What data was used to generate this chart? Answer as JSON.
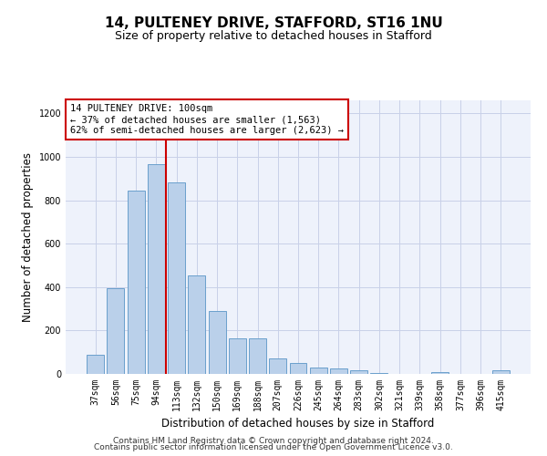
{
  "title": "14, PULTENEY DRIVE, STAFFORD, ST16 1NU",
  "subtitle": "Size of property relative to detached houses in Stafford",
  "xlabel": "Distribution of detached houses by size in Stafford",
  "ylabel": "Number of detached properties",
  "footnote1": "Contains HM Land Registry data © Crown copyright and database right 2024.",
  "footnote2": "Contains public sector information licensed under the Open Government Licence v3.0.",
  "categories": [
    "37sqm",
    "56sqm",
    "75sqm",
    "94sqm",
    "113sqm",
    "132sqm",
    "150sqm",
    "169sqm",
    "188sqm",
    "207sqm",
    "226sqm",
    "245sqm",
    "264sqm",
    "283sqm",
    "302sqm",
    "321sqm",
    "339sqm",
    "358sqm",
    "377sqm",
    "396sqm",
    "415sqm"
  ],
  "values": [
    90,
    395,
    845,
    965,
    880,
    455,
    290,
    165,
    165,
    70,
    50,
    30,
    25,
    18,
    5,
    0,
    0,
    10,
    0,
    0,
    18
  ],
  "bar_color": "#bad0ea",
  "bar_edge_color": "#6aa0cc",
  "bg_color": "#eef2fb",
  "grid_color": "#c8d0e8",
  "vline_color": "#cc0000",
  "vline_x_index": 3.5,
  "annotation_title": "14 PULTENEY DRIVE: 100sqm",
  "annotation_line1": "← 37% of detached houses are smaller (1,563)",
  "annotation_line2": "62% of semi-detached houses are larger (2,623) →",
  "annotation_box_edgecolor": "#cc0000",
  "ylim": [
    0,
    1260
  ],
  "yticks": [
    0,
    200,
    400,
    600,
    800,
    1000,
    1200
  ],
  "title_fontsize": 11,
  "subtitle_fontsize": 9,
  "ylabel_fontsize": 8.5,
  "xlabel_fontsize": 8.5,
  "tick_fontsize": 7,
  "annotation_fontsize": 7.5,
  "footnote_fontsize": 6.5
}
